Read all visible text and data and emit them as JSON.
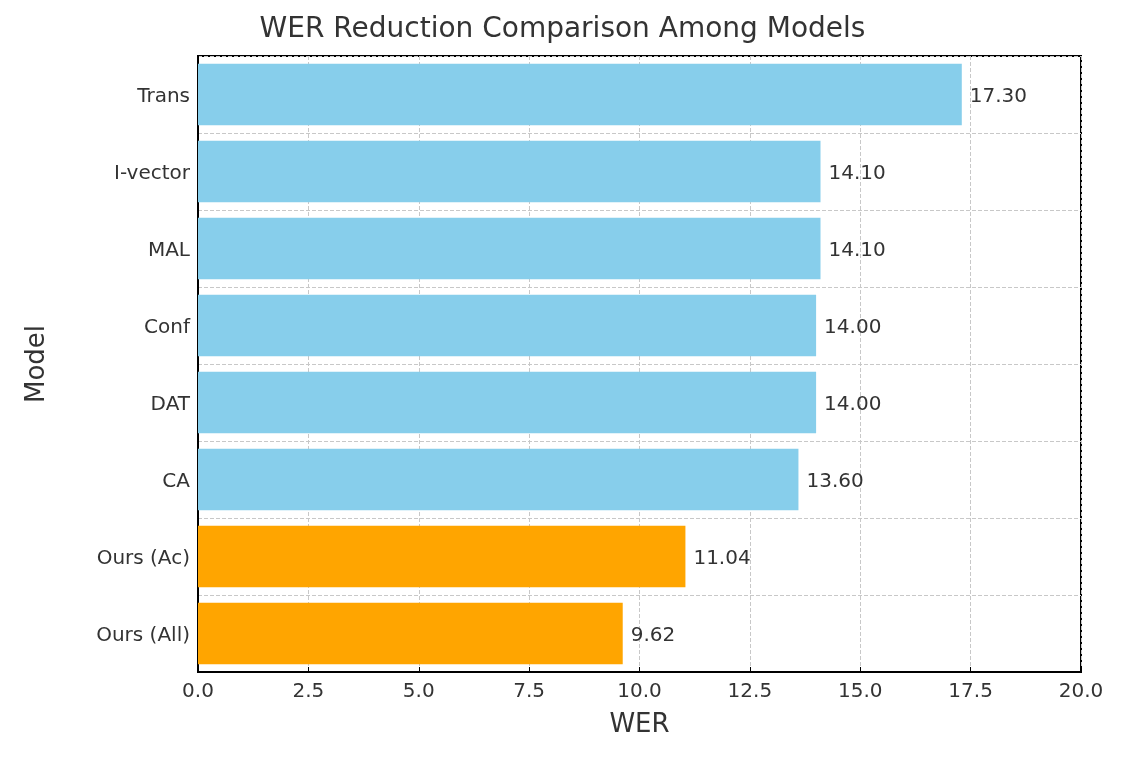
{
  "chart_data": {
    "type": "bar",
    "orientation": "horizontal",
    "title": "WER Reduction Comparison Among Models",
    "xlabel": "WER",
    "ylabel": "Model",
    "categories": [
      "Trans",
      "I-vector",
      "MAL",
      "Conf",
      "DAT",
      "CA",
      "Ours (Ac)",
      "Ours (All)"
    ],
    "values": [
      17.3,
      14.1,
      14.1,
      14.0,
      14.0,
      13.6,
      11.04,
      9.62
    ],
    "value_labels": [
      "17.30",
      "14.10",
      "14.10",
      "14.00",
      "14.00",
      "13.60",
      "11.04",
      "9.62"
    ],
    "colors": [
      "#87ceeb",
      "#87ceeb",
      "#87ceeb",
      "#87ceeb",
      "#87ceeb",
      "#87ceeb",
      "#ffa500",
      "#ffa500"
    ],
    "xlim": [
      0,
      20
    ],
    "xticks": [
      {
        "value": 0,
        "label": "0.0"
      },
      2.5,
      {
        "value": 5,
        "label": "5.0"
      },
      7.5,
      {
        "value": 10,
        "label": "10.0"
      },
      12.5,
      {
        "value": 15,
        "label": "15.0"
      },
      17.5,
      {
        "value": 20,
        "label": "20.0"
      }
    ],
    "grid": true
  }
}
